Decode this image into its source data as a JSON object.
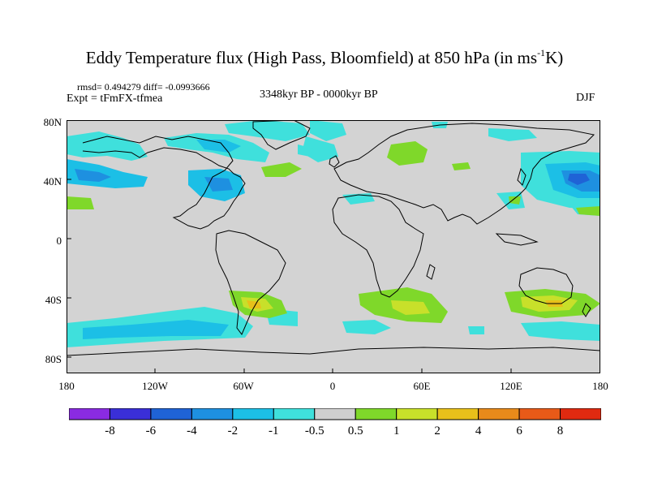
{
  "title_main": "Eddy Temperature flux (High Pass, Bloomfield) at 850 hPa (in ms",
  "title_sup": "-1",
  "title_end": "K)",
  "stats": "rmsd= 0.494279 diff= -0.0993666",
  "experiment": "Expt = tFmFX-tfmea",
  "period": "3348kyr BP - 0000kyr BP",
  "season": "DJF",
  "lat_ticks": [
    "80N",
    "40N",
    "0",
    "40S",
    "80S"
  ],
  "lon_ticks": [
    "180",
    "120W",
    "60W",
    "0",
    "60E",
    "120E",
    "180"
  ],
  "colorbar": {
    "labels": [
      "-8",
      "-6",
      "-4",
      "-2",
      "-1",
      "-0.5",
      "0.5",
      "1",
      "2",
      "4",
      "6",
      "8"
    ],
    "colors": [
      "#8a2be2",
      "#3a2fd8",
      "#1f63d6",
      "#1e90e0",
      "#1cbfe6",
      "#3fe0dc",
      "#cfcfcf",
      "#7fd82a",
      "#c8e02a",
      "#e8c01a",
      "#e88a1a",
      "#e85a18",
      "#e02a10"
    ]
  },
  "map_colors": {
    "ocean_land_background": "#d3d3d3",
    "neg_weak": "#3fe0dc",
    "neg_mod": "#1cbfe6",
    "neg_strong": "#1e90e0",
    "neg_vstrong": "#1f63d6",
    "pos_weak": "#7fd82a",
    "pos_mod": "#c8e02a",
    "pos_strong": "#e8c01a",
    "pos_vstrong": "#e88a1a"
  }
}
